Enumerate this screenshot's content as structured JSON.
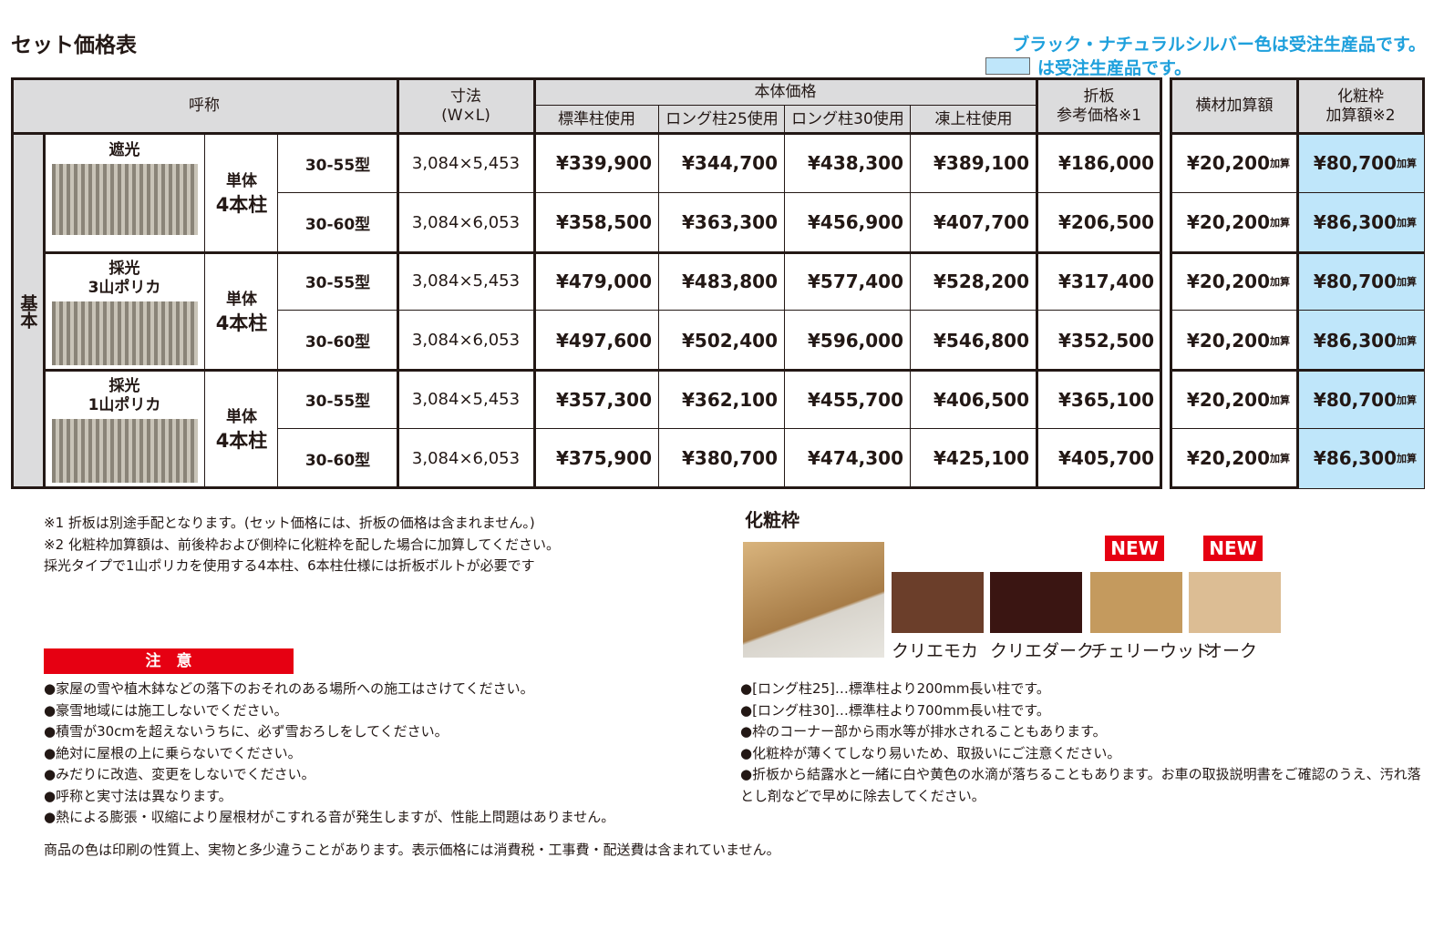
{
  "title": "セット価格表",
  "order_note": "ブラック・ナチュラルシルバー色は受注生産品です。",
  "legend_note": "は受注生産品です。",
  "colors": {
    "order_made": "#bfe6fa",
    "caution": "#e60012",
    "note": "#1ea0dc"
  },
  "header": {
    "name": "呼称",
    "size": "寸法",
    "size_sub": "(W×L)",
    "body_price": "本体価格",
    "std": "標準柱使用",
    "long25": "ロング柱25使用",
    "long30": "ロング柱30使用",
    "frost": "凍上柱使用",
    "folded": "折板",
    "folded_sub": "参考価格※1",
    "beam": "横材加算額",
    "frame": "化粧枠",
    "frame_sub": "加算額※2"
  },
  "side_label": "基本",
  "add_suffix": "加算",
  "groups": [
    {
      "type": "遮光",
      "type2": "",
      "unit": "単体",
      "posts": "4本柱"
    },
    {
      "type": "採光",
      "type2": "3山ポリカ",
      "unit": "単体",
      "posts": "4本柱"
    },
    {
      "type": "採光",
      "type2": "1山ポリカ",
      "unit": "単体",
      "posts": "4本柱"
    }
  ],
  "rows": [
    {
      "model": "30-55型",
      "size": "3,084×5,453",
      "std": "¥339,900",
      "l25": "¥344,700",
      "l30": "¥438,300",
      "frost": "¥389,100",
      "folded": "¥186,000",
      "beam": "¥20,200",
      "frame": "¥80,700"
    },
    {
      "model": "30-60型",
      "size": "3,084×6,053",
      "std": "¥358,500",
      "l25": "¥363,300",
      "l30": "¥456,900",
      "frost": "¥407,700",
      "folded": "¥206,500",
      "beam": "¥20,200",
      "frame": "¥86,300"
    },
    {
      "model": "30-55型",
      "size": "3,084×5,453",
      "std": "¥479,000",
      "l25": "¥483,800",
      "l30": "¥577,400",
      "frost": "¥528,200",
      "folded": "¥317,400",
      "beam": "¥20,200",
      "frame": "¥80,700"
    },
    {
      "model": "30-60型",
      "size": "3,084×6,053",
      "std": "¥497,600",
      "l25": "¥502,400",
      "l30": "¥596,000",
      "frost": "¥546,800",
      "folded": "¥352,500",
      "beam": "¥20,200",
      "frame": "¥86,300"
    },
    {
      "model": "30-55型",
      "size": "3,084×5,453",
      "std": "¥357,300",
      "l25": "¥362,100",
      "l30": "¥455,700",
      "frost": "¥406,500",
      "folded": "¥365,100",
      "beam": "¥20,200",
      "frame": "¥80,700"
    },
    {
      "model": "30-60型",
      "size": "3,084×6,053",
      "std": "¥375,900",
      "l25": "¥380,700",
      "l30": "¥474,300",
      "frost": "¥425,100",
      "folded": "¥405,700",
      "beam": "¥20,200",
      "frame": "¥86,300"
    }
  ],
  "footnotes": [
    "※1 折板は別途手配となります。(セット価格には、折板の価格は含まれません。)",
    "※2 化粧枠加算額は、前後枠および側枠に化粧枠を配した場合に加算してください。",
    "採光タイプで1山ポリカを使用する4本柱、6本柱仕様には折板ボルトが必要です"
  ],
  "caution_title": "注　意",
  "cautions": [
    "●家屋の雪や植木鉢などの落下のおそれのある場所への施工はさけてください。",
    "●豪雪地域には施工しないでください。",
    "●積雪が30cmを超えないうちに、必ず雪おろしをしてください。",
    "●絶対に屋根の上に乗らないでください。",
    "●みだりに改造、変更をしないでください。",
    "●呼称と実寸法は異なります。",
    "●熱による膨張・収縮により屋根材がこすれる音が発生しますが、性能上問題はありません。"
  ],
  "disclaimer": "商品の色は印刷の性質上、実物と多少違うことがあります。表示価格には消費税・工事費・配送費は含まれていません。",
  "frame_section": {
    "title": "化粧枠",
    "new_badge": "NEW",
    "swatches": [
      {
        "name": "クリエモカ",
        "color": "#6b3e2a"
      },
      {
        "name": "クリエダーク",
        "color": "#3a1512"
      },
      {
        "name": "チェリーウッド",
        "color": "#c49a5e"
      },
      {
        "name": "オーク",
        "color": "#dcbd94"
      }
    ]
  },
  "right_notes": [
    "●[ロング柱25]…標準柱より200mm長い柱です。",
    "●[ロング柱30]…標準柱より700mm長い柱です。",
    "●枠のコーナー部から雨水等が排水されることもあります。",
    "●化粧枠が薄くてしなり易いため、取扱いにご注意ください。",
    "●折板から結露水と一緒に白や黄色の水滴が落ちることもあります。お車の取扱説明書をご確認のうえ、汚れ落とし剤などで早めに除去してください。"
  ]
}
